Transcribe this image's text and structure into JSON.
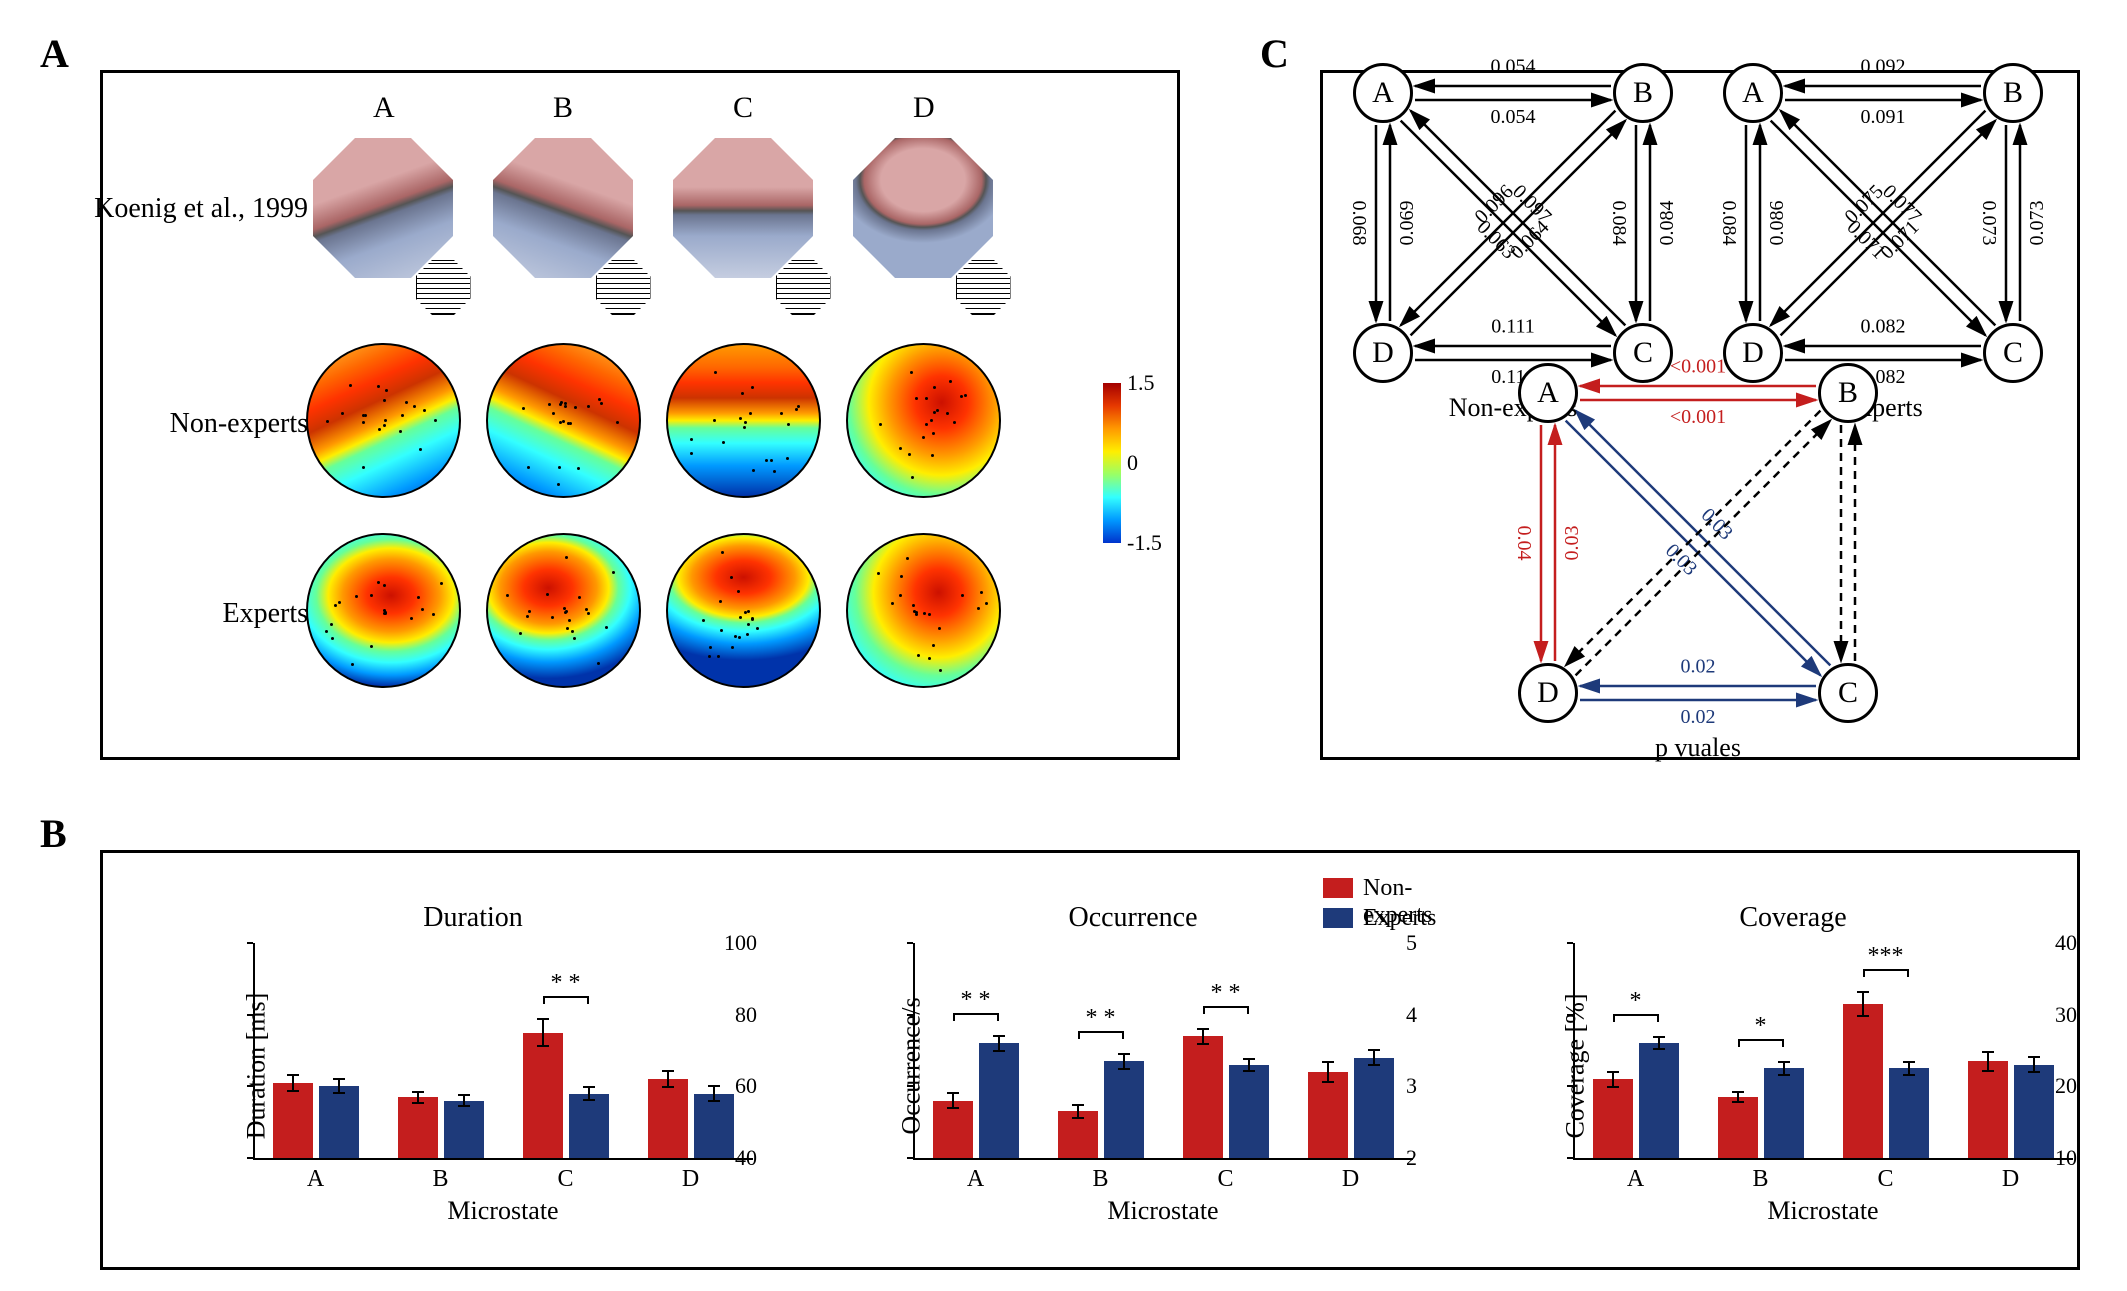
{
  "panelA": {
    "label": "A",
    "rows": [
      "Koenig et al., 1999",
      "Non-experts",
      "Experts"
    ],
    "cols": [
      "A",
      "B",
      "C",
      "D"
    ],
    "colorbar": {
      "ticks": [
        "1.5",
        "0",
        "-1.5"
      ]
    },
    "topomapGradients": {
      "koenig": [
        "linear-gradient(160deg,#d9a6a6 0%,#d9a6a6 35%,#a66 48%,#555 52%,#6b7590 55%,#9aaacb 70%,#c5cde0 100%)",
        "linear-gradient(200deg,#d9a6a6 0%,#d9a6a6 35%,#a66 48%,#555 52%,#6b7590 55%,#9aaacb 70%,#c5cde0 100%)",
        "linear-gradient(180deg,#d9a6a6 0%,#d9a6a6 35%,#a66 48%,#555 52%,#6b7590 55%,#9aaacb 70%,#c5cde0 100%)",
        "radial-gradient(ellipse 60% 45% at 50% 30%,#d9a6a6 0%,#d9a6a6 50%,#a66 70%,#555 75%,#6b7590 80%,#9aaacb 100%)"
      ],
      "nonexperts": [
        "linear-gradient(155deg,#ffcc33 0%,#ff6600 20%,#ff3300 30%,#cc3300 40%,#ff9900 50%,#ffee00 55%,#66ff99 60%,#33ffff 70%,#0099ff 85%,#0033aa 100%)",
        "linear-gradient(205deg,#ffcc33 0%,#ff6600 20%,#ff3300 30%,#cc3300 40%,#ff9900 50%,#ffee00 55%,#66ff99 60%,#33ffff 70%,#0099ff 85%,#0033aa 100%)",
        "linear-gradient(180deg,#ff9900 0%,#ff6600 15%,#ff3300 25%,#cc3300 35%,#ff9900 45%,#ffee00 50%,#66ff99 55%,#33ffff 65%,#0099ff 80%,#0033aa 100%)",
        "radial-gradient(circle at 62% 38%,#cc1100 0%,#ff3300 20%,#ff9900 40%,#ffee00 55%,#66ff99 70%,#33ffff 82%,#0099ff 92%,#0033aa 100%)"
      ],
      "experts": [
        "radial-gradient(ellipse 80% 60% at 55% 40%,#cc1100 0%,#ff3300 20%,#ff9900 40%,#ffee00 52%,#66ff99 62%,#33ffff 74%,#0099ff 88%,#0033aa 100%)",
        "radial-gradient(ellipse 80% 60% at 40% 35%,#cc1100 0%,#ff3300 20%,#ff9900 40%,#ffee00 50%,#66ff99 58%,#33ffff 68%,#0099ff 82%,#0033aa 100%)",
        "radial-gradient(ellipse 90% 55% at 50% 28%,#cc1100 0%,#ff3300 20%,#ff9900 38%,#ffee00 48%,#66ff99 55%,#33ffff 65%,#0099ff 80%,#0033aa 100%)",
        "radial-gradient(circle at 60% 38%,#cc1100 0%,#ff3300 18%,#ff9900 36%,#ffee00 50%,#66ff99 64%,#33ffff 78%,#0099ff 90%,#0033aa 100%)"
      ]
    }
  },
  "panelB": {
    "label": "B",
    "colors": {
      "nonexperts": "#c41e1e",
      "experts": "#1e3a7a"
    },
    "legend": {
      "nonexperts": "Non-experts",
      "experts": "Experts"
    },
    "categories": [
      "A",
      "B",
      "C",
      "D"
    ],
    "xlabel": "Microstate",
    "charts": [
      {
        "title": "Duration",
        "ylabel": "Duration [ms]",
        "ylim": [
          40,
          100
        ],
        "yticks": [
          40,
          60,
          80,
          100
        ],
        "data": {
          "nonexperts": [
            61,
            57,
            75,
            62
          ],
          "experts": [
            60,
            56,
            58,
            58
          ]
        },
        "errors": {
          "nonexperts": [
            2.5,
            1.8,
            4,
            2.5
          ],
          "experts": [
            2.2,
            1.8,
            2,
            2.5
          ]
        },
        "sig": [
          null,
          null,
          "* *",
          null
        ]
      },
      {
        "title": "Occurrence",
        "ylabel": "Occurrence/s",
        "ylim": [
          2,
          5
        ],
        "yticks": [
          2,
          3,
          4,
          5
        ],
        "data": {
          "nonexperts": [
            2.8,
            2.65,
            3.7,
            3.2
          ],
          "experts": [
            3.6,
            3.35,
            3.3,
            3.4
          ]
        },
        "errors": {
          "nonexperts": [
            0.12,
            0.1,
            0.12,
            0.15
          ],
          "experts": [
            0.12,
            0.12,
            0.1,
            0.12
          ]
        },
        "sig": [
          "* *",
          "* *",
          "* *",
          null
        ]
      },
      {
        "title": "Coverage",
        "ylabel": "Coverage [%]",
        "ylim": [
          10,
          40
        ],
        "yticks": [
          10,
          20,
          30,
          40
        ],
        "data": {
          "nonexperts": [
            21,
            18.5,
            31.5,
            23.5
          ],
          "experts": [
            26,
            22.5,
            22.5,
            23
          ]
        },
        "errors": {
          "nonexperts": [
            1.2,
            0.8,
            1.8,
            1.5
          ],
          "experts": [
            1.0,
            1.0,
            1.0,
            1.2
          ]
        },
        "sig": [
          "*",
          "*",
          "***",
          null
        ]
      }
    ]
  },
  "panelC": {
    "label": "C",
    "nodes": [
      "A",
      "B",
      "C",
      "D"
    ],
    "networks": [
      {
        "name": "Non-experts",
        "edges": {
          "AB": [
            "0.054",
            "0.054"
          ],
          "BC": [
            "0.084",
            "0.084"
          ],
          "CD": [
            "0.111",
            "0.111"
          ],
          "DA": [
            "0.069",
            "0.068"
          ],
          "AC": [
            "0.063",
            "0.097"
          ],
          "BD": [
            "0.096",
            "0.064"
          ]
        }
      },
      {
        "name": "Experts",
        "edges": {
          "AB": [
            "0.091",
            "0.092"
          ],
          "BC": [
            "0.073",
            "0.073"
          ],
          "CD": [
            "0.082",
            "0.082"
          ],
          "DA": [
            "0.086",
            "0.084"
          ],
          "AC": [
            "0.071",
            "0.077"
          ],
          "BD": [
            "0.075",
            "0.071"
          ]
        }
      },
      {
        "name": "p vuales",
        "colored": true,
        "edges": {
          "AB": [
            "<0.001",
            "<0.001"
          ],
          "BC": [
            "",
            ""
          ],
          "CD": [
            "0.02",
            "0.02"
          ],
          "DA": [
            "0.03",
            "0.04"
          ],
          "AC": [
            "0.03",
            "0.03"
          ],
          "BD": [
            "",
            ""
          ]
        },
        "edgeColors": {
          "AB": [
            "#c41e1e",
            "#c41e1e"
          ],
          "BC": [
            "#000",
            "#000"
          ],
          "CD": [
            "#1e3a7a",
            "#1e3a7a"
          ],
          "DA": [
            "#c41e1e",
            "#c41e1e"
          ],
          "AC": [
            "#1e3a7a",
            "#1e3a7a"
          ],
          "BD": [
            "#000",
            "#000"
          ]
        },
        "edgeDash": {
          "AB": [
            false,
            false
          ],
          "BC": [
            true,
            true
          ],
          "CD": [
            false,
            false
          ],
          "DA": [
            false,
            false
          ],
          "AC": [
            false,
            false
          ],
          "BD": [
            true,
            true
          ]
        }
      }
    ]
  }
}
